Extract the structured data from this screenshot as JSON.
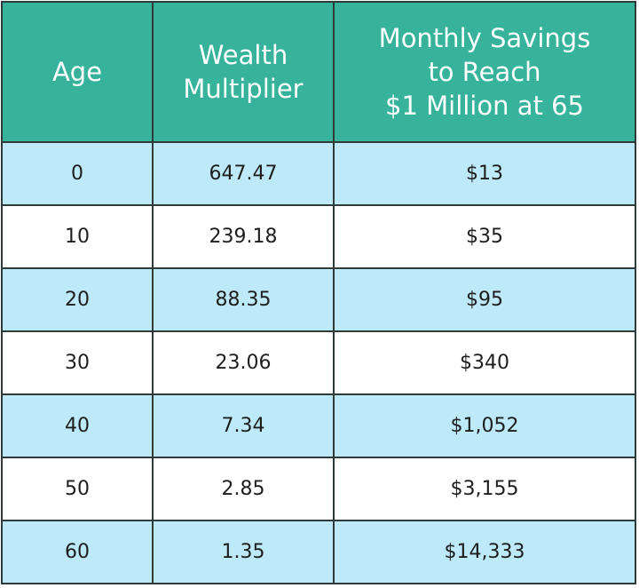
{
  "table": {
    "header": [
      [
        "Age"
      ],
      [
        "Wealth",
        "Multiplier"
      ],
      [
        "Monthly Savings",
        "to Reach",
        "$1 Million at 65"
      ]
    ],
    "rows": [
      [
        "0",
        "647.47",
        "$13"
      ],
      [
        "10",
        "239.18",
        "$35"
      ],
      [
        "20",
        "88.35",
        "$95"
      ],
      [
        "30",
        "23.06",
        "$340"
      ],
      [
        "40",
        "7.34",
        "$1,052"
      ],
      [
        "50",
        "2.85",
        "$3,155"
      ],
      [
        "60",
        "1.35",
        "$14,333"
      ]
    ]
  }
}
